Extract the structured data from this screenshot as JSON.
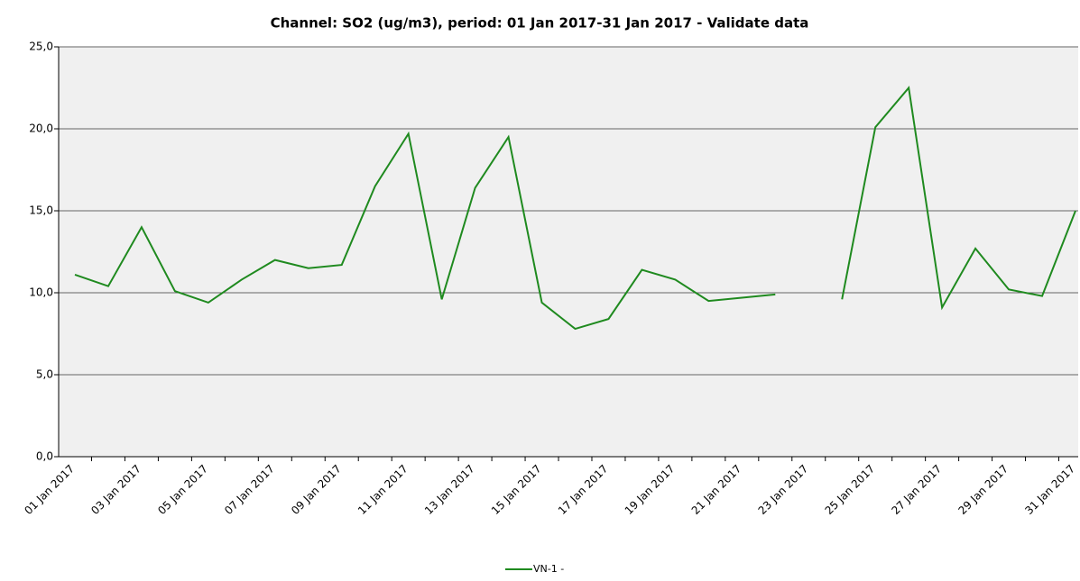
{
  "chart_data": {
    "type": "line",
    "title": "Channel: SO2 (ug/m3), period: 01 Jan 2017-31 Jan 2017 - Validate data",
    "categories": [
      "01 Jan 2017",
      null,
      "03 Jan 2017",
      null,
      "05 Jan 2017",
      null,
      "07 Jan 2017",
      null,
      "09 Jan 2017",
      null,
      "11 Jan 2017",
      null,
      "13 Jan 2017",
      null,
      "15 Jan 2017",
      null,
      "17 Jan 2017",
      null,
      "19 Jan 2017",
      null,
      "21 Jan 2017",
      null,
      "23 Jan 2017",
      null,
      "25 Jan 2017",
      null,
      "27 Jan 2017",
      null,
      "29 Jan 2017",
      null,
      "31 Jan 2017"
    ],
    "series": [
      {
        "name": "VN-1 -",
        "color": "#1f8a1f",
        "values": [
          11.1,
          10.4,
          14.0,
          10.1,
          9.4,
          10.8,
          12.0,
          11.5,
          11.7,
          16.5,
          19.7,
          9.6,
          16.4,
          19.5,
          9.4,
          7.8,
          8.4,
          11.4,
          10.8,
          9.5,
          9.7,
          9.9,
          null,
          9.6,
          20.1,
          22.5,
          9.1,
          12.7,
          10.2,
          9.8,
          15.0
        ]
      }
    ],
    "ylim": [
      0,
      25
    ],
    "yticks": [
      {
        "value": 0,
        "label": "0,0"
      },
      {
        "value": 5,
        "label": "5,0"
      },
      {
        "value": 10,
        "label": "10,0"
      },
      {
        "value": 15,
        "label": "15,0"
      },
      {
        "value": 20,
        "label": "20,0"
      },
      {
        "value": 25,
        "label": "25,0"
      }
    ],
    "grid": true,
    "legend": "bottom"
  }
}
